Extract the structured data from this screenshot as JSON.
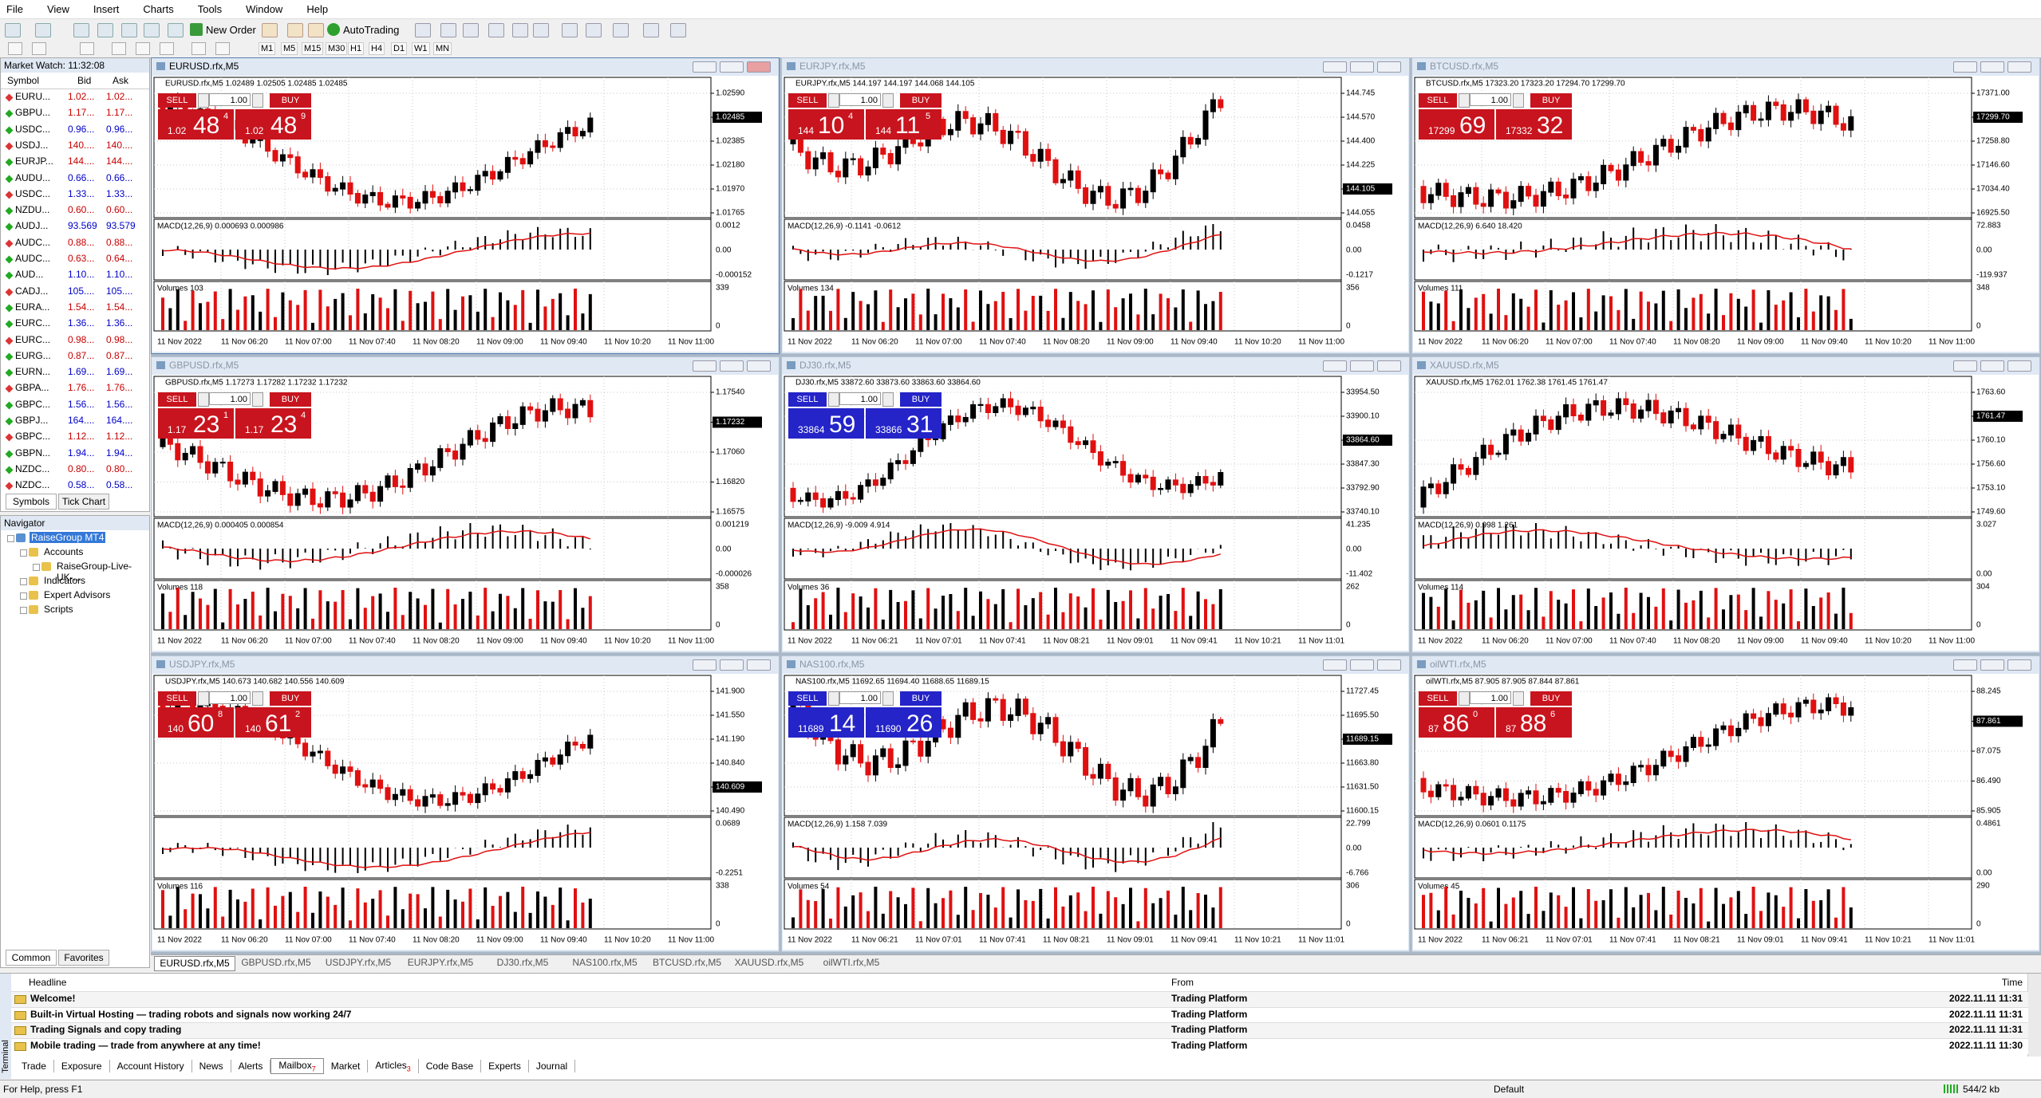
{
  "menu": [
    "File",
    "View",
    "Insert",
    "Charts",
    "Tools",
    "Window",
    "Help"
  ],
  "toolbar": {
    "new_order": "New Order",
    "autotrading": "AutoTrading",
    "timeframes": [
      "M1",
      "M5",
      "M15",
      "M30",
      "H1",
      "H4",
      "D1",
      "W1",
      "MN"
    ]
  },
  "market_watch": {
    "title": "Market Watch: 11:32:08",
    "columns": [
      "Symbol",
      "Bid",
      "Ask"
    ],
    "rows": [
      {
        "symbol": "EURU...",
        "bid": "1.02...",
        "ask": "1.02...",
        "color": "#c80000"
      },
      {
        "symbol": "GBPU...",
        "bid": "1.17...",
        "ask": "1.17...",
        "color": "#c80000"
      },
      {
        "symbol": "USDC...",
        "bid": "0.96...",
        "ask": "0.96...",
        "color": "#0000c8"
      },
      {
        "symbol": "USDJ...",
        "bid": "140....",
        "ask": "140....",
        "color": "#c80000"
      },
      {
        "symbol": "EURJP...",
        "bid": "144....",
        "ask": "144....",
        "color": "#c80000"
      },
      {
        "symbol": "AUDU...",
        "bid": "0.66...",
        "ask": "0.66...",
        "color": "#0000c8"
      },
      {
        "symbol": "USDC...",
        "bid": "1.33...",
        "ask": "1.33...",
        "color": "#0000c8"
      },
      {
        "symbol": "NZDU...",
        "bid": "0.60...",
        "ask": "0.60...",
        "color": "#c80000"
      },
      {
        "symbol": "AUDJ...",
        "bid": "93.569",
        "ask": "93.579",
        "color": "#0000c8"
      },
      {
        "symbol": "AUDC...",
        "bid": "0.88...",
        "ask": "0.88...",
        "color": "#c80000"
      },
      {
        "symbol": "AUDC...",
        "bid": "0.63...",
        "ask": "0.64...",
        "color": "#c80000"
      },
      {
        "symbol": "AUD...",
        "bid": "1.10...",
        "ask": "1.10...",
        "color": "#0000c8"
      },
      {
        "symbol": "CADJ...",
        "bid": "105....",
        "ask": "105....",
        "color": "#0000c8"
      },
      {
        "symbol": "EURA...",
        "bid": "1.54...",
        "ask": "1.54...",
        "color": "#c80000"
      },
      {
        "symbol": "EURC...",
        "bid": "1.36...",
        "ask": "1.36...",
        "color": "#0000c8"
      },
      {
        "symbol": "EURC...",
        "bid": "0.98...",
        "ask": "0.98...",
        "color": "#c80000"
      },
      {
        "symbol": "EURG...",
        "bid": "0.87...",
        "ask": "0.87...",
        "color": "#c80000"
      },
      {
        "symbol": "EURN...",
        "bid": "1.69...",
        "ask": "1.69...",
        "color": "#0000c8"
      },
      {
        "symbol": "GBPA...",
        "bid": "1.76...",
        "ask": "1.76...",
        "color": "#c80000"
      },
      {
        "symbol": "GBPC...",
        "bid": "1.56...",
        "ask": "1.56...",
        "color": "#0000c8"
      },
      {
        "symbol": "GBPJ...",
        "bid": "164....",
        "ask": "164....",
        "color": "#0000c8"
      },
      {
        "symbol": "GBPC...",
        "bid": "1.12...",
        "ask": "1.12...",
        "color": "#c80000"
      },
      {
        "symbol": "GBPN...",
        "bid": "1.94...",
        "ask": "1.94...",
        "color": "#0000c8"
      },
      {
        "symbol": "NZDC...",
        "bid": "0.80...",
        "ask": "0.80...",
        "color": "#c80000"
      },
      {
        "symbol": "NZDC...",
        "bid": "0.58...",
        "ask": "0.58...",
        "color": "#0000c8"
      }
    ],
    "tabs": [
      "Symbols",
      "Tick Chart"
    ]
  },
  "navigator": {
    "title": "Navigator",
    "tree": {
      "label": "RaiseGroup MT4",
      "children": [
        {
          "label": "Accounts",
          "children": [
            {
              "label": "RaiseGroup-Live-UK-..."
            }
          ]
        },
        {
          "label": "Indicators"
        },
        {
          "label": "Expert Advisors"
        },
        {
          "label": "Scripts"
        }
      ]
    },
    "tabs": [
      "Common",
      "Favorites"
    ]
  },
  "trade_labels": {
    "sell": "SELL",
    "buy": "BUY",
    "lot": "1.00"
  },
  "charts": [
    {
      "title": "EURUSD.rfx,M5",
      "info": "EURUSD.rfx,M5 1.02489 1.02505 1.02485 1.02485",
      "panel_color": "#c8141e",
      "sell": {
        "pre": "1.02",
        "big": "48",
        "sup": "4"
      },
      "buy": {
        "pre": "1.02",
        "big": "48",
        "sup": "9"
      },
      "price_axis": [
        "1.02590",
        "1.02485",
        "1.02385",
        "1.02180",
        "1.01970",
        "1.01765"
      ],
      "highlight": 1,
      "macd_label": "MACD(12,26,9) 0.000693 0.000986",
      "macd_axis": [
        "0.0012",
        "0.00",
        "-0.000152"
      ],
      "vol_label": "Volumes 103",
      "vol_axis": [
        "339",
        "0"
      ],
      "times": [
        "11 Nov 2022",
        "11 Nov 06:20",
        "11 Nov 07:00",
        "11 Nov 07:40",
        "11 Nov 08:20",
        "11 Nov 09:00",
        "11 Nov 09:40",
        "11 Nov 10:20",
        "11 Nov 11:00"
      ]
    },
    {
      "title": "EURJPY.rfx,M5",
      "info": "EURJPY.rfx,M5 144.197 144.197 144.068 144.105",
      "panel_color": "#c8141e",
      "sell": {
        "pre": "144",
        "big": "10",
        "sup": "4"
      },
      "buy": {
        "pre": "144",
        "big": "11",
        "sup": "5"
      },
      "price_axis": [
        "144.745",
        "144.570",
        "144.400",
        "144.225",
        "144.105",
        "144.055"
      ],
      "highlight": 4,
      "macd_label": "MACD(12,26,9) -0.1141 -0.0612",
      "macd_axis": [
        "0.0458",
        "0.00",
        "-0.1217"
      ],
      "vol_label": "Volumes 134",
      "vol_axis": [
        "356",
        "0"
      ],
      "times": [
        "11 Nov 2022",
        "11 Nov 06:20",
        "11 Nov 07:00",
        "11 Nov 07:40",
        "11 Nov 08:20",
        "11 Nov 09:00",
        "11 Nov 09:40",
        "11 Nov 10:20",
        "11 Nov 11:00"
      ]
    },
    {
      "title": "BTCUSD.rfx,M5",
      "info": "BTCUSD.rfx,M5 17323.20 17323.20 17294.70 17299.70",
      "panel_color": "#c8141e",
      "sell": {
        "pre": "17299",
        "big": "69"
      },
      "buy": {
        "pre": "17332",
        "big": "32"
      },
      "price_axis": [
        "17371.00",
        "17299.70",
        "17258.80",
        "17146.60",
        "17034.40",
        "16925.50"
      ],
      "highlight": 1,
      "macd_label": "MACD(12,26,9) 6.640 18.420",
      "macd_axis": [
        "72.883",
        "0.00",
        "-119.937"
      ],
      "vol_label": "Volumes 111",
      "vol_axis": [
        "348",
        "0"
      ],
      "times": [
        "11 Nov 2022",
        "11 Nov 06:20",
        "11 Nov 07:00",
        "11 Nov 07:40",
        "11 Nov 08:20",
        "11 Nov 09:00",
        "11 Nov 09:40",
        "11 Nov 10:20",
        "11 Nov 11:00"
      ]
    },
    {
      "title": "GBPUSD.rfx,M5",
      "info": "GBPUSD.rfx,M5 1.17273 1.17282 1.17232 1.17232",
      "panel_color": "#c8141e",
      "sell": {
        "pre": "1.17",
        "big": "23",
        "sup": "1"
      },
      "buy": {
        "pre": "1.17",
        "big": "23",
        "sup": "4"
      },
      "price_axis": [
        "1.17540",
        "1.17232",
        "1.17060",
        "1.16820",
        "1.16575"
      ],
      "highlight": 1,
      "macd_label": "MACD(12,26,9) 0.000405 0.000854",
      "macd_axis": [
        "0.001219",
        "0.00",
        "-0.000026"
      ],
      "vol_label": "Volumes 118",
      "vol_axis": [
        "358",
        "0"
      ],
      "times": [
        "11 Nov 2022",
        "11 Nov 06:20",
        "11 Nov 07:00",
        "11 Nov 07:40",
        "11 Nov 08:20",
        "11 Nov 09:00",
        "11 Nov 09:40",
        "11 Nov 10:20",
        "11 Nov 11:00"
      ]
    },
    {
      "title": "DJ30.rfx,M5",
      "info": "DJ30.rfx,M5 33872.60 33873.60 33863.60 33864.60",
      "panel_color": "#2424c8",
      "sell": {
        "pre": "33864",
        "big": "59"
      },
      "buy": {
        "pre": "33866",
        "big": "31"
      },
      "price_axis": [
        "33954.50",
        "33900.10",
        "33864.60",
        "33847.30",
        "33792.90",
        "33740.10"
      ],
      "highlight": 2,
      "macd_label": "MACD(12,26,9) -9.009 4.914",
      "macd_axis": [
        "41.235",
        "0.00",
        "-11.402"
      ],
      "vol_label": "Volumes 36",
      "vol_axis": [
        "262",
        "0"
      ],
      "times": [
        "11 Nov 2022",
        "11 Nov 06:21",
        "11 Nov 07:01",
        "11 Nov 07:41",
        "11 Nov 08:21",
        "11 Nov 09:01",
        "11 Nov 09:41",
        "11 Nov 10:21",
        "11 Nov 11:01"
      ]
    },
    {
      "title": "XAUUSD.rfx,M5",
      "info": "XAUUSD.rfx,M5 1762.01 1762.38 1761.45 1761.47",
      "price_axis": [
        "1763.60",
        "1761.47",
        "1760.10",
        "1756.60",
        "1753.10",
        "1749.60"
      ],
      "highlight": 1,
      "macd_label": "MACD(12,26,9) 0.998 1.261",
      "macd_axis": [
        "3.027",
        "0.00"
      ],
      "vol_label": "Volumes 114",
      "vol_axis": [
        "304",
        "0"
      ],
      "times": [
        "11 Nov 2022",
        "11 Nov 06:20",
        "11 Nov 07:00",
        "11 Nov 07:40",
        "11 Nov 08:20",
        "11 Nov 09:00",
        "11 Nov 09:40",
        "11 Nov 10:20",
        "11 Nov 11:00"
      ]
    },
    {
      "title": "USDJPY.rfx,M5",
      "info": "USDJPY.rfx,M5 140.673 140.682 140.556 140.609",
      "panel_color": "#c8141e",
      "sell": {
        "pre": "140",
        "big": "60",
        "sup": "8"
      },
      "buy": {
        "pre": "140",
        "big": "61",
        "sup": "2"
      },
      "price_axis": [
        "141.900",
        "141.550",
        "141.190",
        "140.840",
        "140.609",
        "140.490"
      ],
      "highlight": 4,
      "macd_axis": [
        "0.0689",
        "-0.2251"
      ],
      "vol_label": "Volumes 116",
      "vol_axis": [
        "338",
        "0"
      ],
      "times": [
        "11 Nov 2022",
        "11 Nov 06:20",
        "11 Nov 07:00",
        "11 Nov 07:40",
        "11 Nov 08:20",
        "11 Nov 09:00",
        "11 Nov 09:40",
        "11 Nov 10:20",
        "11 Nov 11:00"
      ]
    },
    {
      "title": "NAS100.rfx,M5",
      "info": "NAS100.rfx,M5 11692.65 11694.40 11688.65 11689.15",
      "panel_color": "#2424c8",
      "sell": {
        "pre": "11689",
        "big": "14"
      },
      "buy": {
        "pre": "11690",
        "big": "26"
      },
      "price_axis": [
        "11727.45",
        "11695.50",
        "11689.15",
        "11663.80",
        "11631.50",
        "11600.15"
      ],
      "highlight": 2,
      "macd_label": "MACD(12,26,9) 1.158 7.039",
      "macd_axis": [
        "22.799",
        "0.00",
        "-6.766"
      ],
      "vol_label": "Volumes 54",
      "vol_axis": [
        "306",
        "0"
      ],
      "times": [
        "11 Nov 2022",
        "11 Nov 06:21",
        "11 Nov 07:01",
        "11 Nov 07:41",
        "11 Nov 08:21",
        "11 Nov 09:01",
        "11 Nov 09:41",
        "11 Nov 10:21",
        "11 Nov 11:01"
      ]
    },
    {
      "title": "oilWTI.rfx,M5",
      "info": "oilWTI.rfx,M5 87.905 87.905 87.844 87.861",
      "panel_color": "#c8141e",
      "sell": {
        "pre": "87",
        "big": "86",
        "sup": "0"
      },
      "buy": {
        "pre": "87",
        "big": "88",
        "sup": "6"
      },
      "price_axis": [
        "88.245",
        "87.861",
        "87.075",
        "86.490",
        "85.905"
      ],
      "highlight": 1,
      "macd_label": "MACD(12,26,9) 0.0601 0.1175",
      "macd_axis": [
        "0.4861",
        "0.00"
      ],
      "vol_label": "Volumes 45",
      "vol_axis": [
        "290",
        "0"
      ],
      "times": [
        "11 Nov 2022",
        "11 Nov 06:21",
        "11 Nov 07:01",
        "11 Nov 07:41",
        "11 Nov 08:21",
        "11 Nov 09:01",
        "11 Nov 09:41",
        "11 Nov 10:21",
        "11 Nov 11:01"
      ]
    }
  ],
  "chart_tabs": [
    "EURUSD.rfx,M5",
    "GBPUSD.rfx,M5",
    "USDJPY.rfx,M5",
    "EURJPY.rfx,M5",
    "DJ30.rfx,M5",
    "NAS100.rfx,M5",
    "BTCUSD.rfx,M5",
    "XAUUSD.rfx,M5",
    "oilWTI.rfx,M5"
  ],
  "terminal": {
    "label": "Terminal",
    "columns": [
      "Headline",
      "From",
      "Time"
    ],
    "rows": [
      {
        "headline": "Welcome!",
        "from": "Trading Platform",
        "time": "2022.11.11 11:31"
      },
      {
        "headline": "Built-in Virtual Hosting — trading robots and signals now working 24/7",
        "from": "Trading Platform",
        "time": "2022.11.11 11:31"
      },
      {
        "headline": "Trading Signals and copy trading",
        "from": "Trading Platform",
        "time": "2022.11.11 11:31"
      },
      {
        "headline": "Mobile trading — trade from anywhere at any time!",
        "from": "Trading Platform",
        "time": "2022.11.11 11:30"
      }
    ],
    "tabs": [
      {
        "label": "Trade"
      },
      {
        "label": "Exposure"
      },
      {
        "label": "Account History"
      },
      {
        "label": "News"
      },
      {
        "label": "Alerts"
      },
      {
        "label": "Mailbox",
        "badge": "7"
      },
      {
        "label": "Market"
      },
      {
        "label": "Articles",
        "badge": "3"
      },
      {
        "label": "Code Base"
      },
      {
        "label": "Experts"
      },
      {
        "label": "Journal"
      }
    ]
  },
  "status": {
    "help": "For Help, press F1",
    "profile": "Default",
    "traffic": "544/2 kb"
  }
}
